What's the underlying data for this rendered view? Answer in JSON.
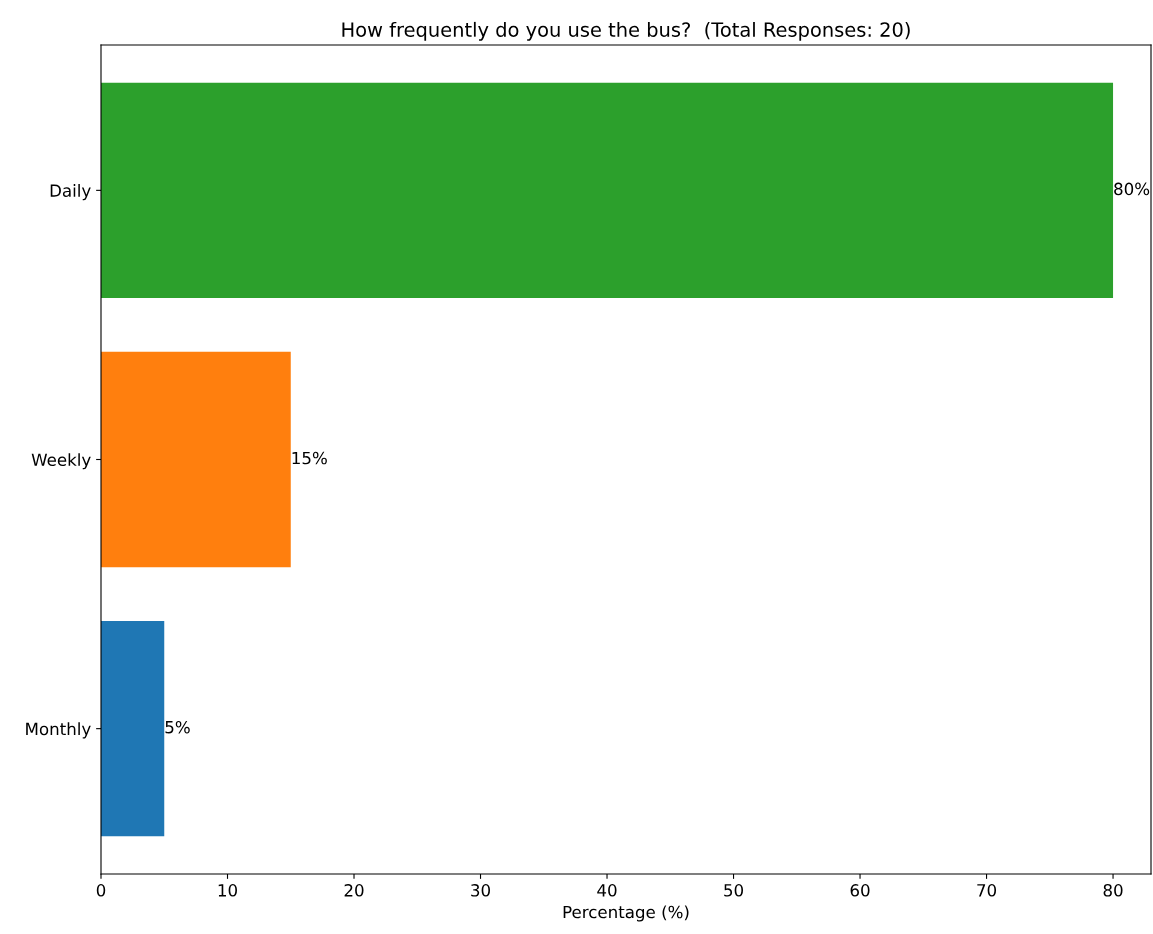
{
  "chart_data": {
    "type": "bar",
    "orientation": "horizontal",
    "title": "How frequently do you use the bus?  (Total Responses: 20)",
    "xlabel": "Percentage (%)",
    "categories": [
      "Daily",
      "Weekly",
      "Monthly"
    ],
    "values": [
      80,
      15,
      5
    ],
    "colors": [
      "#2ca02c",
      "#ff7f0e",
      "#1f77b4"
    ],
    "value_labels": [
      "80%",
      "15%",
      "5%"
    ],
    "xlim": [
      0,
      83
    ],
    "xticks": [
      0,
      10,
      20,
      30,
      40,
      50,
      60,
      70,
      80
    ],
    "grid": false
  }
}
